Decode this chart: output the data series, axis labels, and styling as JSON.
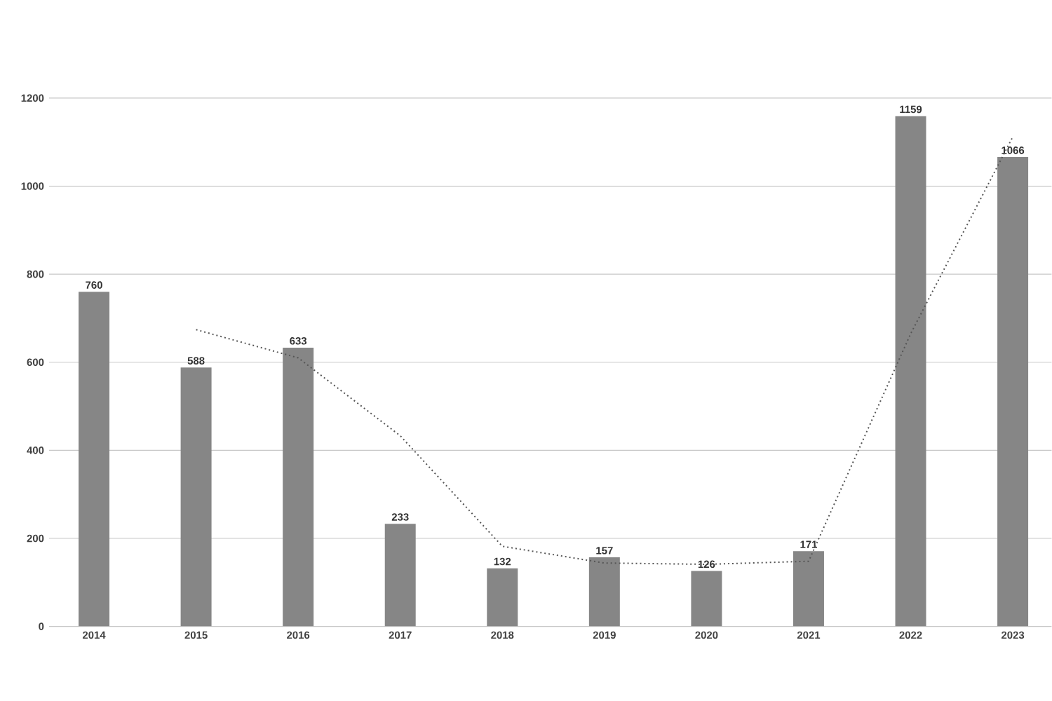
{
  "chart_data": {
    "type": "bar",
    "categories": [
      "2014",
      "2015",
      "2016",
      "2017",
      "2018",
      "2019",
      "2020",
      "2021",
      "2022",
      "2023"
    ],
    "series": [
      {
        "color": "#868686",
        "values": [
          760,
          588,
          633,
          233,
          132,
          157,
          126,
          171,
          1159,
          1066
        ],
        "value_labels": [
          "760",
          "588",
          "633",
          "233",
          "132",
          "157",
          "126",
          "171",
          "1159",
          "1066"
        ]
      },
      {
        "type": "line",
        "color": "#555555",
        "line_style": "dotted",
        "marker": "none",
        "values": [
          null,
          674,
          610,
          433,
          182,
          144,
          141,
          148,
          665,
          1112
        ]
      }
    ],
    "ylim": [
      0,
      1200
    ],
    "yticks": [
      0,
      200,
      400,
      600,
      800,
      1000,
      1200
    ],
    "grid": "y"
  }
}
